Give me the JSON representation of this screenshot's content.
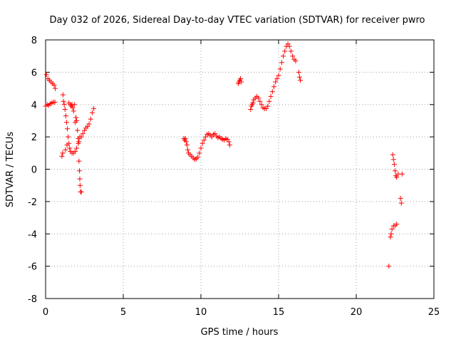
{
  "chart_data": {
    "type": "scatter",
    "title": "Day 032 of 2026, Sidereal Day-to-day VTEC variation (SDTVAR) for receiver pwro",
    "xlabel": "GPS time / hours",
    "ylabel": "SDTVAR / TECUs",
    "xlim": [
      0,
      25
    ],
    "ylim": [
      -8,
      8
    ],
    "xticks": [
      0,
      5,
      10,
      15,
      20,
      25
    ],
    "yticks": [
      -8,
      -6,
      -4,
      -2,
      0,
      2,
      4,
      6,
      8
    ],
    "grid": true,
    "marker": "+",
    "color": "#ff0000",
    "series": [
      {
        "points": [
          [
            0.0,
            3.9
          ],
          [
            0.05,
            5.85
          ],
          [
            0.1,
            4.0
          ],
          [
            0.15,
            5.6
          ],
          [
            0.2,
            3.95
          ],
          [
            0.25,
            5.5
          ],
          [
            0.3,
            4.05
          ],
          [
            0.35,
            5.4
          ],
          [
            0.4,
            4.1
          ],
          [
            0.45,
            5.3
          ],
          [
            0.5,
            4.15
          ],
          [
            0.55,
            5.2
          ],
          [
            0.6,
            4.15
          ],
          [
            0.62,
            5.0
          ],
          [
            1.05,
            0.8
          ],
          [
            1.1,
            1.0
          ],
          [
            1.12,
            4.6
          ],
          [
            1.15,
            4.2
          ],
          [
            1.2,
            4.0
          ],
          [
            1.25,
            3.7
          ],
          [
            1.28,
            1.2
          ],
          [
            1.3,
            3.3
          ],
          [
            1.35,
            2.9
          ],
          [
            1.38,
            1.5
          ],
          [
            1.4,
            2.5
          ],
          [
            1.45,
            2.0
          ],
          [
            1.5,
            1.6
          ],
          [
            1.5,
            4.1
          ],
          [
            1.55,
            1.3
          ],
          [
            1.6,
            4.0
          ],
          [
            1.6,
            1.1
          ],
          [
            1.65,
            3.9
          ],
          [
            1.7,
            1.0
          ],
          [
            1.7,
            4.0
          ],
          [
            1.75,
            3.8
          ],
          [
            1.8,
            1.0
          ],
          [
            1.8,
            3.6
          ],
          [
            1.85,
            4.0
          ],
          [
            1.9,
            1.1
          ],
          [
            1.9,
            2.9
          ],
          [
            1.95,
            3.2
          ],
          [
            2.0,
            3.0
          ],
          [
            2.0,
            1.3
          ],
          [
            2.05,
            2.4
          ],
          [
            2.1,
            1.6
          ],
          [
            2.1,
            1.9
          ],
          [
            2.15,
            0.5
          ],
          [
            2.15,
            1.7
          ],
          [
            2.18,
            -0.1
          ],
          [
            2.2,
            2.0
          ],
          [
            2.2,
            -0.6
          ],
          [
            2.22,
            -1.0
          ],
          [
            2.25,
            -1.4
          ],
          [
            2.3,
            -1.4
          ],
          [
            2.3,
            2.0
          ],
          [
            2.4,
            2.2
          ],
          [
            2.5,
            2.4
          ],
          [
            2.6,
            2.55
          ],
          [
            2.7,
            2.65
          ],
          [
            2.8,
            2.8
          ],
          [
            2.9,
            3.1
          ],
          [
            3.0,
            3.5
          ],
          [
            3.1,
            3.75
          ],
          [
            8.9,
            1.9
          ],
          [
            8.95,
            1.8
          ],
          [
            9.0,
            1.9
          ],
          [
            9.05,
            1.7
          ],
          [
            9.1,
            1.5
          ],
          [
            9.15,
            1.2
          ],
          [
            9.2,
            1.0
          ],
          [
            9.3,
            0.9
          ],
          [
            9.4,
            0.8
          ],
          [
            9.5,
            0.7
          ],
          [
            9.6,
            0.6
          ],
          [
            9.7,
            0.65
          ],
          [
            9.8,
            0.75
          ],
          [
            9.9,
            1.0
          ],
          [
            10.0,
            1.3
          ],
          [
            10.1,
            1.6
          ],
          [
            10.2,
            1.8
          ],
          [
            10.3,
            2.0
          ],
          [
            10.4,
            2.15
          ],
          [
            10.5,
            2.2
          ],
          [
            10.6,
            2.1
          ],
          [
            10.7,
            2.0
          ],
          [
            10.8,
            2.15
          ],
          [
            10.9,
            2.2
          ],
          [
            11.0,
            2.05
          ],
          [
            11.1,
            1.95
          ],
          [
            11.2,
            2.0
          ],
          [
            11.3,
            1.9
          ],
          [
            11.4,
            1.85
          ],
          [
            11.5,
            1.8
          ],
          [
            11.6,
            1.9
          ],
          [
            11.7,
            1.85
          ],
          [
            11.8,
            1.7
          ],
          [
            11.85,
            1.5
          ],
          [
            12.4,
            5.3
          ],
          [
            12.45,
            5.4
          ],
          [
            12.5,
            5.5
          ],
          [
            12.55,
            5.6
          ],
          [
            12.6,
            5.4
          ],
          [
            13.2,
            3.7
          ],
          [
            13.25,
            3.9
          ],
          [
            13.3,
            4.0
          ],
          [
            13.35,
            4.1
          ],
          [
            13.4,
            4.3
          ],
          [
            13.5,
            4.4
          ],
          [
            13.6,
            4.5
          ],
          [
            13.7,
            4.4
          ],
          [
            13.8,
            4.2
          ],
          [
            13.9,
            4.0
          ],
          [
            14.0,
            3.8
          ],
          [
            14.1,
            3.75
          ],
          [
            14.2,
            3.75
          ],
          [
            14.3,
            3.9
          ],
          [
            14.4,
            4.2
          ],
          [
            14.5,
            4.5
          ],
          [
            14.6,
            4.8
          ],
          [
            14.7,
            5.1
          ],
          [
            14.8,
            5.4
          ],
          [
            14.9,
            5.6
          ],
          [
            15.0,
            5.8
          ],
          [
            15.1,
            6.2
          ],
          [
            15.2,
            6.6
          ],
          [
            15.3,
            7.0
          ],
          [
            15.4,
            7.3
          ],
          [
            15.5,
            7.6
          ],
          [
            15.6,
            7.75
          ],
          [
            15.7,
            7.6
          ],
          [
            15.8,
            7.3
          ],
          [
            15.9,
            7.0
          ],
          [
            16.0,
            6.8
          ],
          [
            16.1,
            6.7
          ],
          [
            16.3,
            6.0
          ],
          [
            16.35,
            5.7
          ],
          [
            16.4,
            5.5
          ],
          [
            22.1,
            -6.0
          ],
          [
            22.2,
            -4.2
          ],
          [
            22.25,
            -4.0
          ],
          [
            22.3,
            -3.7
          ],
          [
            22.35,
            0.9
          ],
          [
            22.4,
            0.6
          ],
          [
            22.4,
            -3.5
          ],
          [
            22.45,
            0.3
          ],
          [
            22.5,
            -0.1
          ],
          [
            22.5,
            -3.5
          ],
          [
            22.55,
            -0.4
          ],
          [
            22.6,
            -3.4
          ],
          [
            22.6,
            -0.5
          ],
          [
            22.7,
            -0.3
          ],
          [
            22.85,
            -1.8
          ],
          [
            22.9,
            -2.1
          ],
          [
            22.95,
            -0.3
          ]
        ]
      }
    ]
  }
}
